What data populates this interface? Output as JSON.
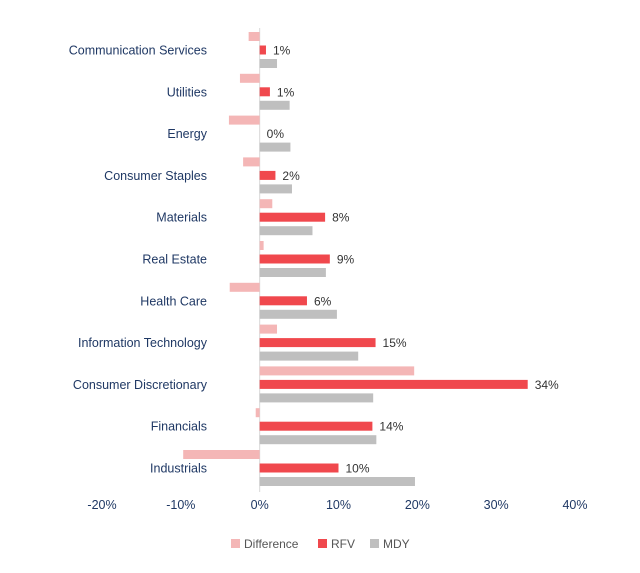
{
  "chart_data": {
    "type": "bar",
    "orientation": "horizontal",
    "title": "",
    "xlabel": "",
    "ylabel": "",
    "xlim": [
      -20,
      40
    ],
    "x_ticks": [
      -20,
      -10,
      0,
      10,
      20,
      30,
      40
    ],
    "x_tick_labels": [
      "-20%",
      "-10%",
      "0%",
      "10%",
      "20%",
      "30%",
      "40%"
    ],
    "value_unit": "%",
    "grid": false,
    "legend_position": "bottom",
    "categories": [
      "Communication Services",
      "Utilities",
      "Energy",
      "Consumer Staples",
      "Materials",
      "Real Estate",
      "Health Care",
      "Information Technology",
      "Consumer Discretionary",
      "Financials",
      "Industrials"
    ],
    "series": [
      {
        "name": "Difference",
        "color": "#f4b6b6",
        "values": [
          -1.4,
          -2.5,
          -3.9,
          -2.1,
          1.6,
          0.5,
          -3.8,
          2.2,
          19.6,
          -0.5,
          -9.7
        ]
      },
      {
        "name": "RFV",
        "color": "#f0484d",
        "values": [
          0.8,
          1.3,
          0.0,
          2.0,
          8.3,
          8.9,
          6.0,
          14.7,
          34.0,
          14.3,
          10.0
        ]
      },
      {
        "name": "MDY",
        "color": "#bfbfbf",
        "values": [
          2.2,
          3.8,
          3.9,
          4.1,
          6.7,
          8.4,
          9.8,
          12.5,
          14.4,
          14.8,
          19.7
        ]
      }
    ],
    "rfv_data_labels": [
      "1%",
      "1%",
      "0%",
      "2%",
      "8%",
      "9%",
      "6%",
      "15%",
      "34%",
      "14%",
      "10%"
    ]
  }
}
